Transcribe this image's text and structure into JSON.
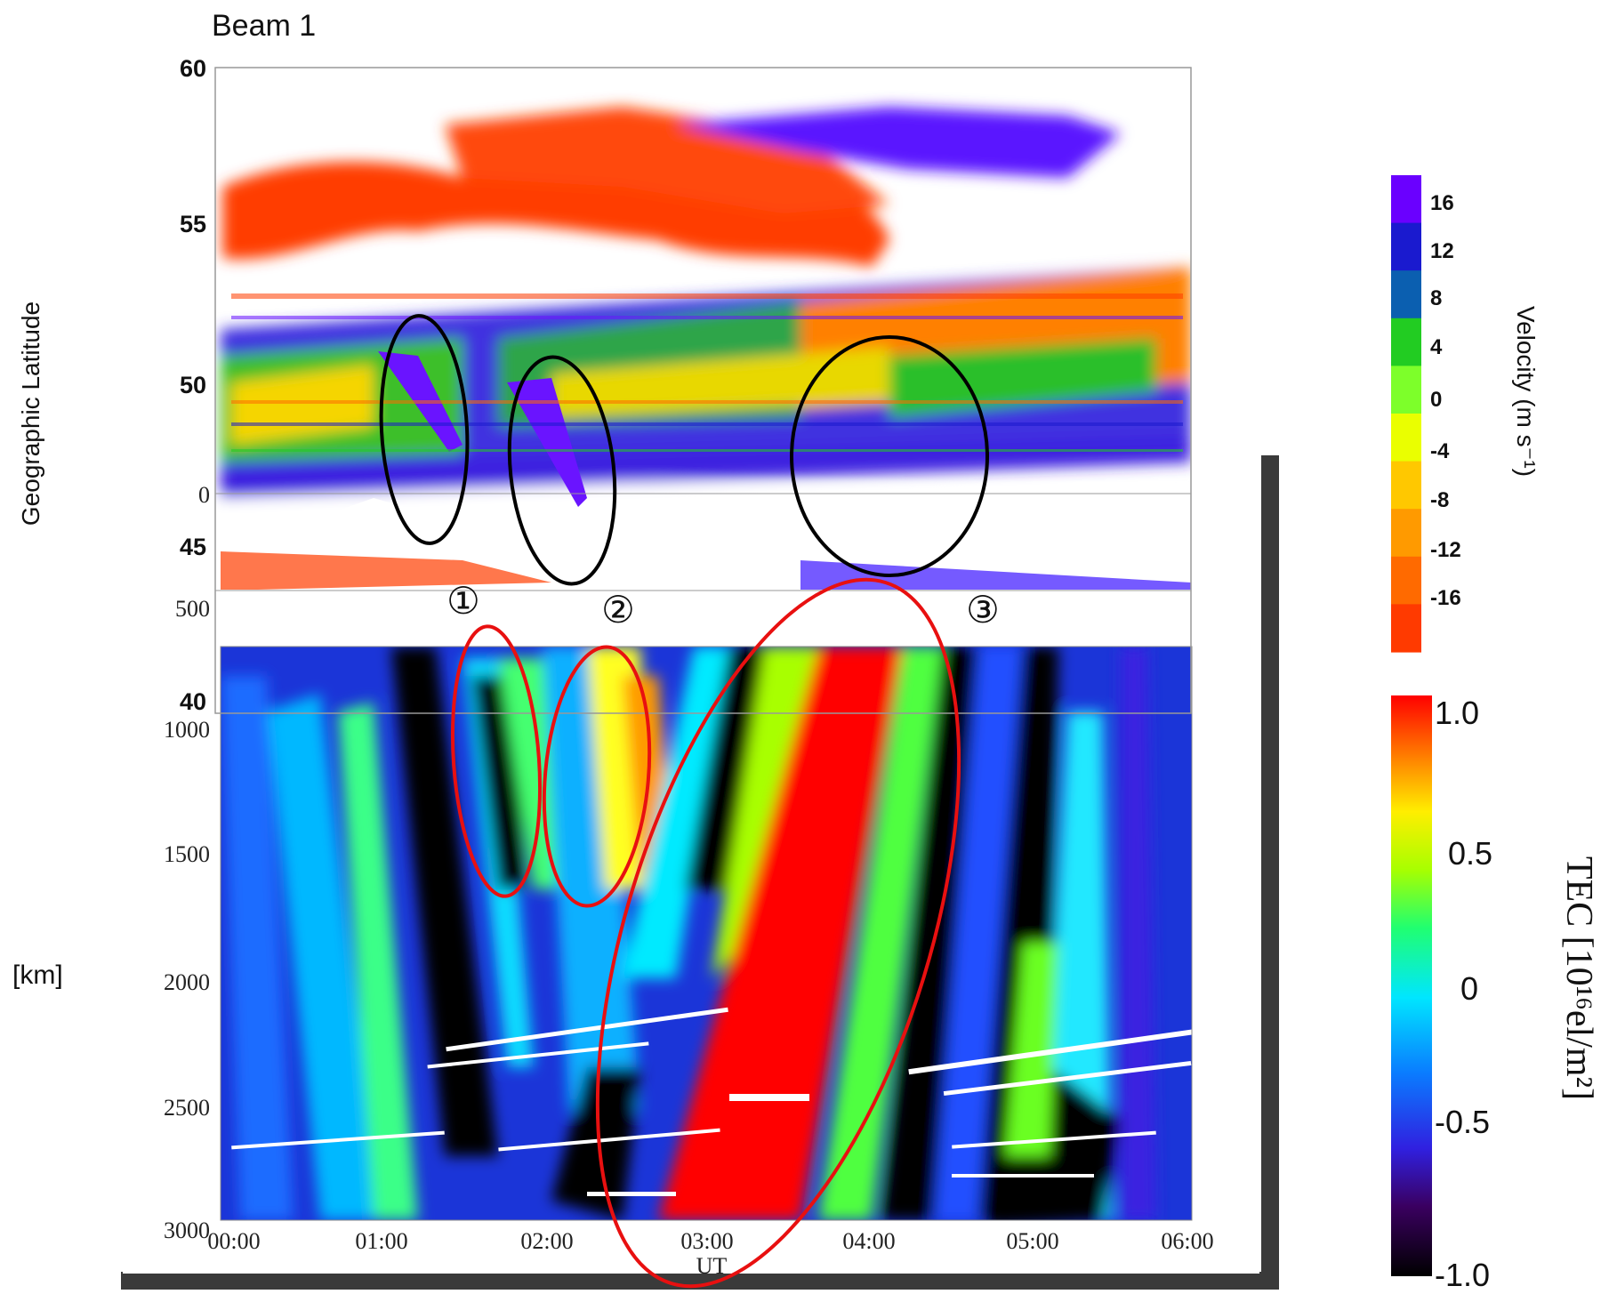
{
  "chart_data": [
    {
      "type": "heatmap",
      "title": "Beam 1",
      "ylabel": "Geographic Latitude",
      "y_ticks": [
        "60",
        "55",
        "50",
        "45",
        "40"
      ],
      "ylim": [
        40,
        60
      ],
      "x_range": [
        "00:00",
        "06:00"
      ],
      "colorbar": {
        "label": "Velocity (m s⁻¹)",
        "ticks": [
          "16",
          "12",
          "8",
          "4",
          "0",
          "-4",
          "-8",
          "-12",
          "-16"
        ],
        "colors": [
          "#ff3a00",
          "#ff6a00",
          "#ff9a00",
          "#ffc800",
          "#eaff00",
          "#7dff2a",
          "#22cc22",
          "#0b5fb0",
          "#1a1acf",
          "#6a00ff"
        ]
      },
      "annotations": [
        {
          "label": "①",
          "color": "#000000"
        },
        {
          "label": "②",
          "color": "#000000"
        },
        {
          "label": "③",
          "color": "#000000"
        }
      ]
    },
    {
      "type": "heatmap",
      "xlabel": "UT",
      "ylabel": "[km]",
      "x_ticks": [
        "00:00",
        "01:00",
        "02:00",
        "03:00",
        "04:00",
        "05:00",
        "06:00"
      ],
      "y_ticks": [
        "500",
        "1000",
        "1500",
        "2000",
        "2500",
        "3000"
      ],
      "ylim": [
        3000,
        0
      ],
      "colorbar": {
        "label": "TEC [10¹⁶el/m²]",
        "ticks": [
          "1.0",
          "0.5",
          "0",
          "-0.5",
          "-1.0"
        ],
        "range": [
          -1.0,
          1.0
        ],
        "colors": [
          "#000000",
          "#6a00a0",
          "#1a1aff",
          "#0aa0ff",
          "#00ffff",
          "#22ff66",
          "#ffff00",
          "#ff9900",
          "#ff0000"
        ]
      },
      "annotations": [
        {
          "shape": "ellipse",
          "color": "#e81010"
        },
        {
          "shape": "ellipse",
          "color": "#e81010"
        },
        {
          "shape": "ellipse",
          "color": "#e81010"
        }
      ],
      "overlap_axis_labels": {
        "lower_latitude_tick": "0"
      }
    }
  ]
}
